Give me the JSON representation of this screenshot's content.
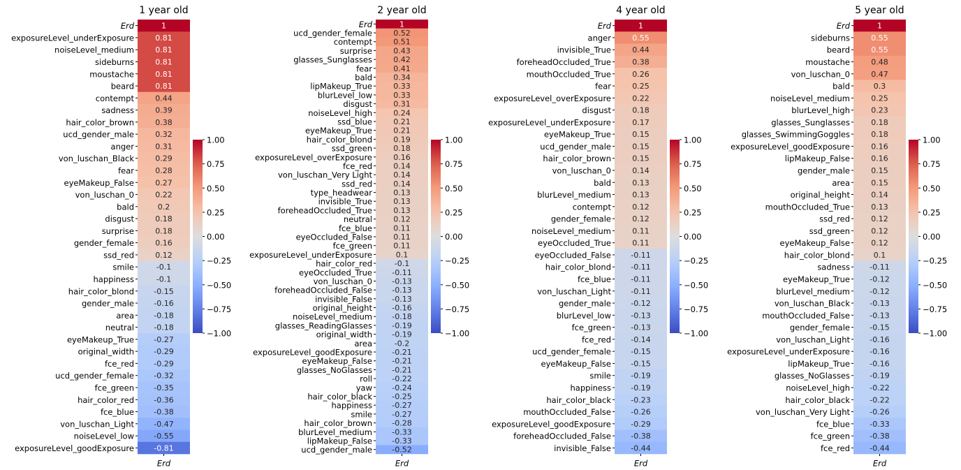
{
  "chart_data": [
    {
      "type": "heatmap",
      "title": "1 year old",
      "columns": [
        "Erd"
      ],
      "colormap": "coolwarm",
      "vlim": [
        -1,
        1
      ],
      "rows": [
        "Erd",
        "exposureLevel_underExposure",
        "noiseLevel_medium",
        "sideburns",
        "moustache",
        "beard",
        "contempt",
        "sadness",
        "hair_color_brown",
        "ucd_gender_male",
        "anger",
        "von_luschan_Black",
        "fear",
        "eyeMakeup_False",
        "von_luschan_0",
        "bald",
        "disgust",
        "surprise",
        "gender_female",
        "ssd_red",
        "smile",
        "happiness",
        "hair_color_blond",
        "gender_male",
        "area",
        "neutral",
        "eyeMakeup_True",
        "original_width",
        "fce_red",
        "ucd_gender_female",
        "fce_green",
        "hair_color_red",
        "fce_blue",
        "von_luschan_Light",
        "noiseLevel_low",
        "exposureLevel_goodExposure"
      ],
      "values": [
        1,
        0.81,
        0.81,
        0.81,
        0.81,
        0.81,
        0.44,
        0.39,
        0.38,
        0.32,
        0.31,
        0.29,
        0.28,
        0.27,
        0.22,
        0.2,
        0.18,
        0.18,
        0.16,
        0.12,
        -0.1,
        -0.1,
        -0.15,
        -0.16,
        -0.18,
        -0.18,
        -0.27,
        -0.29,
        -0.29,
        -0.32,
        -0.35,
        -0.36,
        -0.38,
        -0.47,
        -0.55,
        -0.81
      ],
      "colorbar_ticks": [
        {
          "value": 1,
          "label": "1.00"
        },
        {
          "value": 0.75,
          "label": "0.75"
        },
        {
          "value": 0.5,
          "label": "0.50"
        },
        {
          "value": 0.25,
          "label": "0.25"
        },
        {
          "value": 0,
          "label": "0.00"
        },
        {
          "value": -0.25,
          "label": "−0.25"
        },
        {
          "value": -0.5,
          "label": "−0.50"
        },
        {
          "value": -0.75,
          "label": "−0.75"
        },
        {
          "value": -1,
          "label": "−1.00"
        }
      ]
    },
    {
      "type": "heatmap",
      "title": "2 year old",
      "columns": [
        "Erd"
      ],
      "colormap": "coolwarm",
      "vlim": [
        -1,
        1
      ],
      "rows": [
        "Erd",
        "ucd_gender_female",
        "contempt",
        "surprise",
        "glasses_Sunglasses",
        "fear",
        "bald",
        "lipMakeup_True",
        "blurLevel_low",
        "disgust",
        "noiseLevel_high",
        "ssd_blue",
        "eyeMakeup_True",
        "hair_color_blond",
        "ssd_green",
        "exposureLevel_overExposure",
        "fce_red",
        "von_luschan_Very Light",
        "ssd_red",
        "type_headwear",
        "invisible_True",
        "foreheadOccluded_True",
        "neutral",
        "fce_blue",
        "eyeOccluded_False",
        "fce_green",
        "exposureLevel_underExposure",
        "hair_color_red",
        "eyeOccluded_True",
        "von_luschan_0",
        "foreheadOccluded_False",
        "invisible_False",
        "original_height",
        "noiseLevel_medium",
        "glasses_ReadingGlasses",
        "original_width",
        "area",
        "exposureLevel_goodExposure",
        "eyeMakeup_False",
        "glasses_NoGlasses",
        "roll",
        "yaw",
        "hair_color_black",
        "happiness",
        "smile",
        "hair_color_brown",
        "blurLevel_medium",
        "lipMakeup_False",
        "ucd_gender_male"
      ],
      "values": [
        1,
        0.52,
        0.51,
        0.43,
        0.42,
        0.41,
        0.34,
        0.33,
        0.33,
        0.31,
        0.24,
        0.21,
        0.21,
        0.19,
        0.18,
        0.16,
        0.14,
        0.14,
        0.14,
        0.13,
        0.13,
        0.13,
        0.12,
        0.11,
        0.11,
        0.11,
        0.1,
        -0.1,
        -0.11,
        -0.13,
        -0.13,
        -0.13,
        -0.16,
        -0.18,
        -0.19,
        -0.19,
        -0.2,
        -0.21,
        -0.21,
        -0.21,
        -0.22,
        -0.24,
        -0.25,
        -0.27,
        -0.27,
        -0.28,
        -0.33,
        -0.33,
        -0.52
      ],
      "colorbar_ticks": [
        {
          "value": 1,
          "label": "1.00"
        },
        {
          "value": 0.75,
          "label": "0.75"
        },
        {
          "value": 0.5,
          "label": "0.50"
        },
        {
          "value": 0.25,
          "label": "0.25"
        },
        {
          "value": 0,
          "label": "0.00"
        },
        {
          "value": -0.25,
          "label": "−0.25"
        },
        {
          "value": -0.5,
          "label": "−0.50"
        },
        {
          "value": -0.75,
          "label": "−0.75"
        },
        {
          "value": -1,
          "label": "−1.00"
        }
      ]
    },
    {
      "type": "heatmap",
      "title": "4 year old",
      "columns": [
        "Erd"
      ],
      "colormap": "coolwarm",
      "vlim": [
        -1,
        1
      ],
      "rows": [
        "Erd",
        "anger",
        "invisible_True",
        "foreheadOccluded_True",
        "mouthOccluded_True",
        "fear",
        "exposureLevel_overExposure",
        "disgust",
        "exposureLevel_underExposure",
        "eyeMakeup_True",
        "ucd_gender_male",
        "hair_color_brown",
        "von_luschan_0",
        "bald",
        "blurLevel_medium",
        "contempt",
        "gender_female",
        "noiseLevel_medium",
        "eyeOccluded_True",
        "eyeOccluded_False",
        "hair_color_blond",
        "fce_blue",
        "von_luschan_Light",
        "gender_male",
        "blurLevel_low",
        "fce_green",
        "fce_red",
        "ucd_gender_female",
        "eyeMakeup_False",
        "smile",
        "happiness",
        "hair_color_black",
        "mouthOccluded_False",
        "exposureLevel_goodExposure",
        "foreheadOccluded_False",
        "invisible_False"
      ],
      "values": [
        1,
        0.55,
        0.44,
        0.38,
        0.26,
        0.25,
        0.22,
        0.18,
        0.17,
        0.15,
        0.15,
        0.15,
        0.14,
        0.13,
        0.13,
        0.12,
        0.12,
        0.11,
        0.11,
        -0.11,
        -0.11,
        -0.11,
        -0.11,
        -0.12,
        -0.13,
        -0.13,
        -0.14,
        -0.15,
        -0.15,
        -0.19,
        -0.19,
        -0.23,
        -0.26,
        -0.29,
        -0.38,
        -0.44
      ],
      "colorbar_ticks": [
        {
          "value": 1,
          "label": "1.00"
        },
        {
          "value": 0.75,
          "label": "0.75"
        },
        {
          "value": 0.5,
          "label": "0.50"
        },
        {
          "value": 0.25,
          "label": "0.25"
        },
        {
          "value": 0,
          "label": "0.00"
        },
        {
          "value": -0.25,
          "label": "−0.25"
        },
        {
          "value": -0.5,
          "label": "−0.50"
        },
        {
          "value": -0.75,
          "label": "−0.75"
        },
        {
          "value": -1,
          "label": "−1.00"
        }
      ]
    },
    {
      "type": "heatmap",
      "title": "5 year old",
      "columns": [
        "Erd"
      ],
      "colormap": "coolwarm",
      "vlim": [
        -1,
        1
      ],
      "rows": [
        "Erd",
        "sideburns",
        "beard",
        "moustache",
        "von_luschan_0",
        "bald",
        "noiseLevel_medium",
        "blurLevel_high",
        "glasses_Sunglasses",
        "glasses_SwimmingGoggles",
        "exposureLevel_goodExposure",
        "lipMakeup_False",
        "gender_male",
        "area",
        "original_height",
        "mouthOccluded_True",
        "ssd_red",
        "ssd_green",
        "eyeMakeup_False",
        "hair_color_blond",
        "sadness",
        "eyeMakeup_True",
        "blurLevel_medium",
        "von_luschan_Black",
        "mouthOccluded_False",
        "gender_female",
        "von_luschan_Light",
        "exposureLevel_underExposure",
        "lipMakeup_True",
        "glasses_NoGlasses",
        "noiseLevel_high",
        "hair_color_black",
        "von_luschan_Very Light",
        "fce_blue",
        "fce_green",
        "fce_red"
      ],
      "values": [
        1,
        0.55,
        0.55,
        0.48,
        0.47,
        0.3,
        0.25,
        0.23,
        0.18,
        0.18,
        0.16,
        0.16,
        0.15,
        0.15,
        0.14,
        0.13,
        0.12,
        0.12,
        0.12,
        0.1,
        -0.11,
        -0.12,
        -0.12,
        -0.13,
        -0.13,
        -0.15,
        -0.16,
        -0.16,
        -0.16,
        -0.19,
        -0.22,
        -0.22,
        -0.26,
        -0.33,
        -0.38,
        -0.44
      ],
      "colorbar_ticks": [
        {
          "value": 1,
          "label": "1.00"
        },
        {
          "value": 0.75,
          "label": "0.75"
        },
        {
          "value": 0.5,
          "label": "0.50"
        },
        {
          "value": 0.25,
          "label": "0.25"
        },
        {
          "value": 0,
          "label": "0.00"
        },
        {
          "value": -0.25,
          "label": "−0.25"
        },
        {
          "value": -0.5,
          "label": "−0.50"
        },
        {
          "value": -0.75,
          "label": "−0.75"
        },
        {
          "value": -1,
          "label": "−1.00"
        }
      ]
    }
  ]
}
